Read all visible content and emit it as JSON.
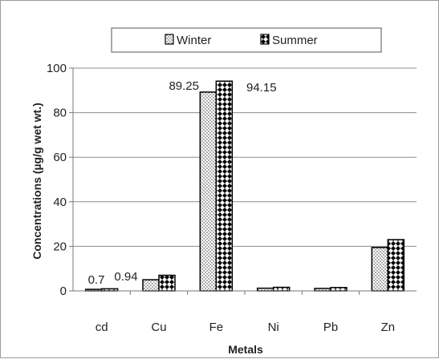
{
  "chart_data": {
    "type": "bar",
    "title": "",
    "xlabel": "Metals",
    "ylabel": "Concentrations (µg/g wet wt.)",
    "categories": [
      "cd",
      "Cu",
      "Fe",
      "Ni",
      "Pb",
      "Zn"
    ],
    "series": [
      {
        "name": "Winter",
        "values": [
          0.7,
          5,
          89.25,
          1.2,
          1.1,
          19.5
        ],
        "pattern": "dotted",
        "color": "#000000"
      },
      {
        "name": "Summer",
        "values": [
          0.94,
          7,
          94.15,
          1.6,
          1.5,
          23
        ],
        "pattern": "diamond-checker",
        "color": "#000000"
      }
    ],
    "ylim": [
      0,
      100
    ],
    "yticks": [
      0,
      20,
      40,
      60,
      80,
      100
    ],
    "grid": true,
    "legend_position": "top",
    "data_labels": [
      {
        "series": 0,
        "category": 0,
        "text": "0.7"
      },
      {
        "series": 1,
        "category": 0,
        "text": "0.94"
      },
      {
        "series": 0,
        "category": 2,
        "text": "89.25"
      },
      {
        "series": 1,
        "category": 2,
        "text": "94.15"
      }
    ]
  }
}
